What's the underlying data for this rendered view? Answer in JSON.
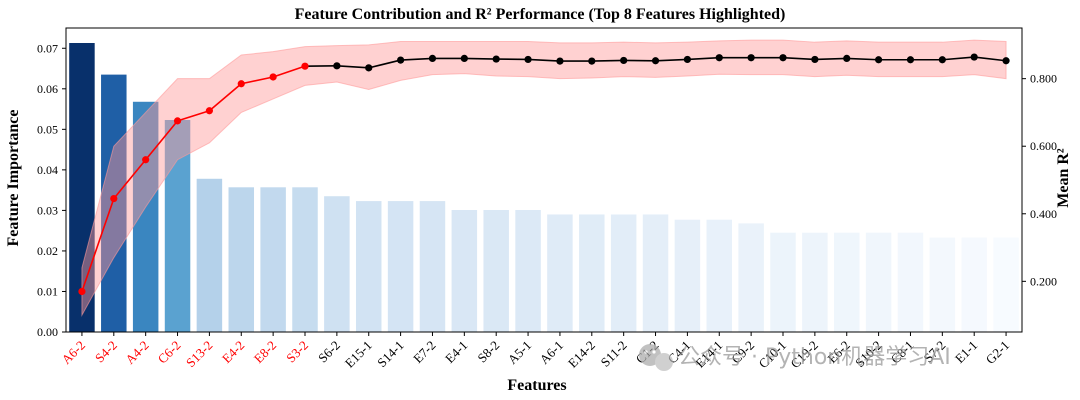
{
  "chart_data": {
    "type": "bar",
    "title": "Feature Contribution and R² Performance (Top 8 Features Highlighted)",
    "xlabel": "Features",
    "ylabel": "Feature Importance",
    "y2label": "Mean R²",
    "ylim": [
      0,
      0.075
    ],
    "y2lim": [
      0.05,
      0.95
    ],
    "yticks": [
      "0.00",
      "0.01",
      "0.02",
      "0.03",
      "0.04",
      "0.05",
      "0.06",
      "0.07"
    ],
    "y2ticks": [
      "0.200",
      "0.400",
      "0.600",
      "0.800"
    ],
    "categories": [
      "A6-2",
      "S4-2",
      "A4-2",
      "C6-2",
      "S13-2",
      "E4-2",
      "E8-2",
      "S3-2",
      "S6-2",
      "E15-1",
      "S14-1",
      "E7-2",
      "E4-1",
      "S8-2",
      "A5-1",
      "A6-1",
      "E14-2",
      "S11-2",
      "C1-2",
      "C4-1",
      "E14-1",
      "C9-2",
      "C10-1",
      "C19-2",
      "E6-2",
      "S10-2",
      "C8-1",
      "S7-2",
      "E1-1",
      "G2-1"
    ],
    "top_n": 8,
    "highlight_color": "#ff0000",
    "series": [
      {
        "name": "Feature Importance",
        "type": "bar",
        "values": [
          0.0713,
          0.0635,
          0.0568,
          0.0523,
          0.0378,
          0.0357,
          0.0357,
          0.0357,
          0.0335,
          0.0323,
          0.0323,
          0.0323,
          0.0301,
          0.0301,
          0.0301,
          0.029,
          0.029,
          0.029,
          0.029,
          0.0277,
          0.0277,
          0.0268,
          0.0245,
          0.0245,
          0.0245,
          0.0245,
          0.0245,
          0.0233,
          0.0233,
          0.0233
        ]
      },
      {
        "name": "Mean R²",
        "type": "line",
        "axis": "right",
        "values": [
          0.17,
          0.445,
          0.56,
          0.675,
          0.705,
          0.785,
          0.805,
          0.837,
          0.838,
          0.832,
          0.855,
          0.86,
          0.86,
          0.858,
          0.857,
          0.852,
          0.852,
          0.854,
          0.853,
          0.857,
          0.862,
          0.862,
          0.862,
          0.857,
          0.86,
          0.856,
          0.856,
          0.856,
          0.864,
          0.853
        ],
        "band_lower": [
          0.1,
          0.27,
          0.42,
          0.56,
          0.61,
          0.7,
          0.74,
          0.78,
          0.79,
          0.768,
          0.795,
          0.812,
          0.815,
          0.808,
          0.806,
          0.8,
          0.802,
          0.806,
          0.804,
          0.808,
          0.813,
          0.812,
          0.812,
          0.806,
          0.81,
          0.806,
          0.806,
          0.806,
          0.812,
          0.8
        ],
        "band_upper": [
          0.24,
          0.6,
          0.7,
          0.8,
          0.8,
          0.87,
          0.88,
          0.895,
          0.898,
          0.9,
          0.91,
          0.91,
          0.91,
          0.91,
          0.91,
          0.906,
          0.906,
          0.908,
          0.906,
          0.908,
          0.912,
          0.914,
          0.914,
          0.908,
          0.912,
          0.908,
          0.908,
          0.908,
          0.914,
          0.91
        ],
        "color_top": "#ff0000",
        "color_rest": "#000000",
        "band_color": "#ff9999"
      }
    ],
    "bar_colors": [
      "#08306b",
      "#1f5fa6",
      "#3a86c0",
      "#5aa2d0",
      "#b4d1ea",
      "#bcd6ec",
      "#c2d9ee",
      "#c6dcef",
      "#cfe1f2",
      "#d2e3f3",
      "#d4e4f4",
      "#d6e5f4",
      "#d9e7f5",
      "#dae8f5",
      "#dce9f6",
      "#dfebf7",
      "#e0ecf7",
      "#e2edf8",
      "#e4eef8",
      "#e6eff9",
      "#e8f1fa",
      "#eaf2fa",
      "#ecf4fb",
      "#edf4fb",
      "#eff6fc",
      "#f0f6fc",
      "#f2f7fd",
      "#f3f8fd",
      "#f5f9fe",
      "#f7fbff"
    ],
    "grid": false
  },
  "watermark": {
    "icon": "wechat-icon",
    "text": "公众号 · Python机器学习AI"
  }
}
